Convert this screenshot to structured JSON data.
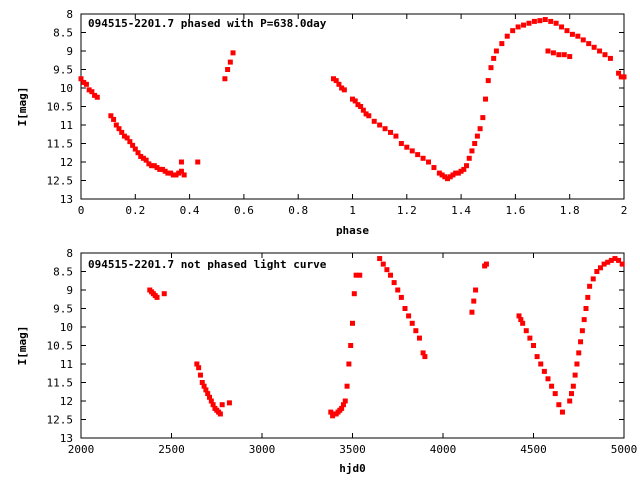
{
  "chart_data": [
    {
      "type": "scatter",
      "title": "094515-2201.7 phased with P=638.0day",
      "xlabel": "phase",
      "ylabel": "I[mag]",
      "xlim": [
        0,
        2
      ],
      "ylim": [
        8,
        13
      ],
      "y_inverted": true,
      "xticks": [
        "0",
        "0.2",
        "0.4",
        "0.6",
        "0.8",
        "1",
        "1.2",
        "1.4",
        "1.6",
        "1.8",
        "2"
      ],
      "yticks": [
        "8",
        "8.5",
        "9",
        "9.5",
        "10",
        "10.5",
        "11",
        "11.5",
        "12",
        "12.5",
        "13"
      ],
      "marker_color": "#ff0000",
      "series": [
        {
          "x": [
            0.0,
            0.01,
            0.02,
            0.03,
            0.04,
            0.05,
            0.06,
            0.11,
            0.12,
            0.13,
            0.14,
            0.15,
            0.16,
            0.17,
            0.18,
            0.19,
            0.2,
            0.21,
            0.22,
            0.23,
            0.24,
            0.25,
            0.26,
            0.27,
            0.28,
            0.29,
            0.3,
            0.31,
            0.32,
            0.33,
            0.34,
            0.35,
            0.36,
            0.37,
            0.38,
            0.37,
            0.43,
            0.53,
            0.54,
            0.55,
            0.56,
            0.93,
            0.94,
            0.95,
            0.96,
            0.97,
            1.0,
            1.01,
            1.02,
            1.03,
            1.04,
            1.05,
            1.06,
            1.08,
            1.1,
            1.12,
            1.14,
            1.16,
            1.18,
            1.2,
            1.22,
            1.24,
            1.26,
            1.28,
            1.3,
            1.32,
            1.33,
            1.34,
            1.35,
            1.36,
            1.37,
            1.38,
            1.39,
            1.4,
            1.41,
            1.42,
            1.43,
            1.44,
            1.45,
            1.46,
            1.47,
            1.48,
            1.49,
            1.5,
            1.51,
            1.52,
            1.53,
            1.55,
            1.57,
            1.59,
            1.61,
            1.63,
            1.65,
            1.67,
            1.69,
            1.71,
            1.73,
            1.75,
            1.77,
            1.79,
            1.81,
            1.83,
            1.85,
            1.87,
            1.89,
            1.91,
            1.93,
            1.95,
            1.72,
            1.74,
            1.76,
            1.78,
            1.8,
            1.98,
            1.99,
            2.0
          ],
          "y": [
            9.75,
            9.85,
            9.9,
            10.05,
            10.1,
            10.2,
            10.25,
            10.75,
            10.85,
            11.0,
            11.1,
            11.2,
            11.3,
            11.35,
            11.45,
            11.55,
            11.65,
            11.75,
            11.85,
            11.9,
            11.95,
            12.05,
            12.1,
            12.1,
            12.15,
            12.2,
            12.2,
            12.25,
            12.3,
            12.3,
            12.35,
            12.35,
            12.3,
            12.25,
            12.35,
            12.0,
            12.0,
            9.75,
            9.5,
            9.3,
            9.05,
            9.75,
            9.8,
            9.9,
            10.0,
            10.05,
            10.3,
            10.35,
            10.45,
            10.5,
            10.6,
            10.7,
            10.75,
            10.9,
            11.0,
            11.1,
            11.2,
            11.3,
            11.5,
            11.6,
            11.7,
            11.8,
            11.9,
            12.0,
            12.15,
            12.3,
            12.35,
            12.4,
            12.45,
            12.4,
            12.35,
            12.3,
            12.3,
            12.25,
            12.2,
            12.1,
            11.9,
            11.7,
            11.5,
            11.3,
            11.1,
            10.8,
            10.3,
            9.8,
            9.45,
            9.2,
            9.0,
            8.8,
            8.6,
            8.45,
            8.35,
            8.3,
            8.25,
            8.2,
            8.18,
            8.15,
            8.2,
            8.25,
            8.35,
            8.45,
            8.55,
            8.6,
            8.7,
            8.8,
            8.9,
            9.0,
            9.1,
            9.2,
            9.0,
            9.05,
            9.1,
            9.1,
            9.15,
            9.6,
            9.7,
            9.7
          ]
        }
      ]
    },
    {
      "type": "scatter",
      "title": "094515-2201.7 not phased light curve",
      "xlabel": "hjd0",
      "ylabel": "I[mag]",
      "xlim": [
        2000,
        5000
      ],
      "ylim": [
        8,
        13
      ],
      "y_inverted": true,
      "xticks": [
        "2000",
        "2500",
        "3000",
        "3500",
        "4000",
        "4500",
        "5000"
      ],
      "yticks": [
        "8",
        "8.5",
        "9",
        "9.5",
        "10",
        "10.5",
        "11",
        "11.5",
        "12",
        "12.5",
        "13"
      ],
      "marker_color": "#ff0000",
      "series": [
        {
          "x": [
            2380,
            2390,
            2400,
            2410,
            2420,
            2460,
            2640,
            2650,
            2660,
            2670,
            2680,
            2690,
            2700,
            2710,
            2720,
            2730,
            2740,
            2750,
            2760,
            2770,
            2780,
            2820,
            3380,
            3390,
            3400,
            3410,
            3420,
            3430,
            3440,
            3450,
            3460,
            3470,
            3480,
            3490,
            3500,
            3510,
            3520,
            3540,
            3650,
            3670,
            3690,
            3710,
            3730,
            3750,
            3770,
            3790,
            3810,
            3830,
            3850,
            3870,
            3890,
            3900,
            4160,
            4170,
            4180,
            4230,
            4240,
            4420,
            4430,
            4440,
            4460,
            4480,
            4500,
            4520,
            4540,
            4560,
            4580,
            4600,
            4620,
            4640,
            4660,
            4700,
            4710,
            4720,
            4730,
            4740,
            4750,
            4760,
            4770,
            4780,
            4790,
            4800,
            4810,
            4830,
            4850,
            4870,
            4890,
            4910,
            4930,
            4950,
            4970,
            4990
          ],
          "y": [
            9.0,
            9.05,
            9.1,
            9.15,
            9.2,
            9.1,
            11.0,
            11.1,
            11.3,
            11.5,
            11.6,
            11.7,
            11.8,
            11.9,
            12.0,
            12.1,
            12.2,
            12.25,
            12.3,
            12.35,
            12.1,
            12.05,
            12.3,
            12.4,
            12.35,
            12.35,
            12.3,
            12.25,
            12.2,
            12.1,
            12.0,
            11.6,
            11.0,
            10.5,
            9.9,
            9.1,
            8.6,
            8.6,
            8.15,
            8.3,
            8.45,
            8.6,
            8.8,
            9.0,
            9.2,
            9.5,
            9.7,
            9.9,
            10.1,
            10.3,
            10.7,
            10.8,
            9.6,
            9.3,
            9.0,
            8.35,
            8.3,
            9.7,
            9.8,
            9.9,
            10.1,
            10.3,
            10.5,
            10.8,
            11.0,
            11.2,
            11.4,
            11.6,
            11.8,
            12.1,
            12.3,
            12.0,
            11.8,
            11.6,
            11.3,
            11.0,
            10.7,
            10.4,
            10.1,
            9.8,
            9.5,
            9.2,
            8.9,
            8.7,
            8.5,
            8.4,
            8.3,
            8.25,
            8.2,
            8.15,
            8.2,
            8.3
          ]
        }
      ]
    }
  ]
}
